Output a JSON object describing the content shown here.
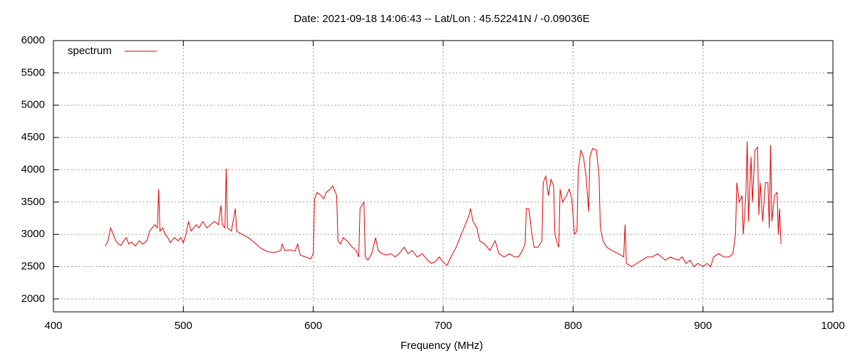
{
  "chart_data": {
    "type": "line",
    "title": "Date: 2021-09-18 14:06:43  --  Lat/Lon : 45.52241N / -0.09036E",
    "x_label": "Frequency (MHz)",
    "xlim": [
      400,
      1000
    ],
    "xticks": [
      400,
      500,
      600,
      700,
      800,
      900,
      1000
    ],
    "ylim": [
      1800,
      6000
    ],
    "yticks": [
      2000,
      2500,
      3000,
      3500,
      4000,
      4500,
      5000,
      5500,
      6000
    ],
    "grid": true,
    "legend": "top-left",
    "series": [
      {
        "name": "spectrum",
        "color": "#e00000",
        "x": [
          440,
          442,
          444,
          446,
          448,
          450,
          452,
          454,
          456,
          458,
          460,
          463,
          466,
          469,
          472,
          474,
          476,
          478,
          480,
          481,
          482,
          484,
          486,
          488,
          490,
          493,
          496,
          498,
          500,
          502,
          504,
          506,
          508,
          510,
          512,
          515,
          518,
          521,
          524,
          527,
          529,
          530,
          532,
          533,
          534,
          537,
          540,
          541,
          545,
          550,
          553,
          556,
          560,
          565,
          570,
          575,
          576,
          578,
          582,
          586,
          588,
          590,
          594,
          598,
          600,
          601,
          603,
          606,
          608,
          610,
          613,
          615,
          617,
          618,
          619,
          621,
          623,
          626,
          628,
          630,
          633,
          635,
          636,
          639,
          640,
          642,
          645,
          648,
          650,
          653,
          656,
          660,
          663,
          666,
          670,
          673,
          676,
          680,
          684,
          688,
          691,
          694,
          697,
          700,
          703,
          706,
          710,
          714,
          717,
          720,
          721,
          723,
          726,
          728,
          732,
          736,
          740,
          743,
          747,
          751,
          755,
          758,
          761,
          763,
          764,
          766,
          768,
          770,
          773,
          776,
          777,
          779,
          781,
          783,
          785,
          786,
          788,
          789,
          790,
          792,
          795,
          797,
          799,
          801,
          803,
          804,
          806,
          808,
          810,
          812,
          813,
          815,
          818,
          820,
          821,
          823,
          826,
          830,
          835,
          839,
          840,
          841,
          845,
          849,
          853,
          857,
          861,
          865,
          868,
          871,
          875,
          878,
          881,
          884,
          887,
          890,
          893,
          896,
          900,
          903,
          906,
          908,
          912,
          916,
          920,
          923,
          925,
          926,
          928,
          930,
          931,
          933,
          934,
          935,
          937,
          938,
          940,
          942,
          943,
          944,
          946,
          948,
          950,
          951,
          952,
          953,
          955,
          957,
          958,
          959,
          960
        ],
        "values": [
          2820,
          2900,
          3100,
          3000,
          2900,
          2850,
          2830,
          2900,
          2950,
          2850,
          2880,
          2820,
          2900,
          2850,
          2900,
          3050,
          3100,
          3150,
          3100,
          3700,
          3050,
          3100,
          3000,
          2950,
          2870,
          2950,
          2900,
          2950,
          2870,
          3000,
          3200,
          3050,
          3100,
          3150,
          3100,
          3200,
          3100,
          3150,
          3200,
          3150,
          3450,
          3150,
          3100,
          4020,
          3100,
          3050,
          3400,
          3050,
          3000,
          2950,
          2900,
          2850,
          2780,
          2730,
          2720,
          2750,
          2850,
          2750,
          2760,
          2740,
          2850,
          2680,
          2650,
          2620,
          2700,
          3550,
          3650,
          3600,
          3550,
          3650,
          3700,
          3750,
          3650,
          3600,
          2900,
          2850,
          2950,
          2900,
          2850,
          2800,
          2750,
          2650,
          3400,
          3500,
          2650,
          2600,
          2700,
          2950,
          2750,
          2700,
          2680,
          2700,
          2650,
          2700,
          2800,
          2700,
          2750,
          2650,
          2700,
          2600,
          2550,
          2580,
          2650,
          2570,
          2520,
          2650,
          2800,
          3000,
          3150,
          3300,
          3400,
          3200,
          3100,
          2900,
          2850,
          2750,
          2900,
          2700,
          2650,
          2700,
          2650,
          2650,
          2750,
          2850,
          3400,
          3400,
          3050,
          2800,
          2800,
          2900,
          3800,
          3900,
          3600,
          3850,
          3750,
          3000,
          2850,
          2800,
          3700,
          3500,
          3600,
          3700,
          3550,
          3000,
          3050,
          4000,
          4300,
          4200,
          3900,
          3350,
          4200,
          4330,
          4300,
          3900,
          3100,
          2900,
          2800,
          2750,
          2700,
          2650,
          3150,
          2550,
          2500,
          2550,
          2600,
          2650,
          2650,
          2700,
          2650,
          2600,
          2650,
          2620,
          2600,
          2650,
          2550,
          2600,
          2500,
          2550,
          2500,
          2550,
          2500,
          2650,
          2700,
          2650,
          2650,
          2700,
          3000,
          3800,
          3500,
          3600,
          3000,
          3600,
          4440,
          3200,
          4200,
          3500,
          4300,
          4350,
          3300,
          3800,
          3200,
          3800,
          3800,
          3100,
          4380,
          3200,
          3600,
          3650,
          3000,
          3400,
          2850
        ]
      }
    ]
  }
}
